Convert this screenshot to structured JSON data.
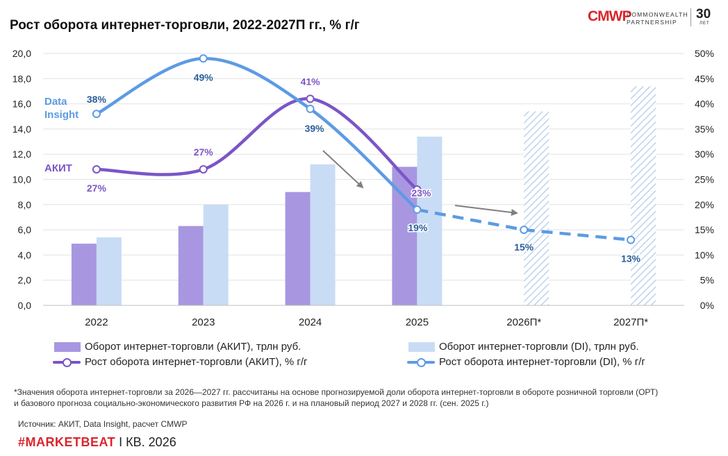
{
  "header": {
    "title": "Рост оборота интернет-торговли, 2022-2027П гг., % г/г",
    "logo": {
      "mark": "CMWP",
      "line1": "COMMONWEALTH",
      "line2": "PARTNERSHIP",
      "thirty": "30",
      "years": "ЛЕТ"
    }
  },
  "chart_data": {
    "type": "bar",
    "categories": [
      "2022",
      "2023",
      "2024",
      "2025",
      "2026П*",
      "2027П*"
    ],
    "y_left": {
      "ticks": [
        "0,0",
        "2,0",
        "4,0",
        "6,0",
        "8,0",
        "10,0",
        "12,0",
        "14,0",
        "16,0",
        "18,0",
        "20,0"
      ],
      "range": [
        0,
        20
      ]
    },
    "y_right": {
      "ticks": [
        "0%",
        "5%",
        "10%",
        "15%",
        "20%",
        "25%",
        "30%",
        "35%",
        "40%",
        "45%",
        "50%"
      ],
      "range": [
        0,
        50
      ]
    },
    "bar_series": [
      {
        "name": "Оборот интернет-торговли (АКИТ), трлн руб.",
        "color": "#a897e0",
        "values": [
          4.9,
          6.3,
          9.0,
          11.0,
          null,
          null
        ]
      },
      {
        "name": "Оборот интернет-торговли (DI), трлн руб.",
        "color": "#c9dcf5",
        "values": [
          5.4,
          8.0,
          11.2,
          13.4,
          15.4,
          17.4
        ],
        "hatched_from_index": 4
      }
    ],
    "line_series": [
      {
        "name": "Рост оборота интернет-торговли (АКИТ), % г/г",
        "color": "#7b55c7",
        "values": [
          27,
          27,
          41,
          23,
          null,
          null
        ],
        "labels": [
          "27%",
          "27%",
          "41%",
          "23%",
          "",
          ""
        ]
      },
      {
        "name": "Рост оборота интернет-торговли (DI), % г/г",
        "color": "#5d9be3",
        "values": [
          38,
          49,
          39,
          19,
          15,
          13
        ],
        "labels": [
          "38%",
          "49%",
          "39%",
          "19%",
          "15%",
          "13%"
        ],
        "dashed_from_index": 3
      }
    ],
    "annotations": {
      "di_label": [
        "Data",
        "Insight"
      ],
      "akit_label": "АКИТ"
    }
  },
  "footnote": {
    "line1": "*Значения оборота интернет-торговли за 2026—2027 гг. рассчитаны на основе прогнозируемой доли оборота интернет-торговли в обороте розничной торговли (ОРТ)",
    "line2": "и базового прогноза социально-экономического развития РФ на 2026 г. и на плановый период 2027 и 2028 гг. (сен. 2025 г.)"
  },
  "source": "Источник: АКИТ, Data Insight, расчет CMWP",
  "marketbeat": {
    "brand": "#MARKETBEAT",
    "period": " I КВ. 2026"
  }
}
